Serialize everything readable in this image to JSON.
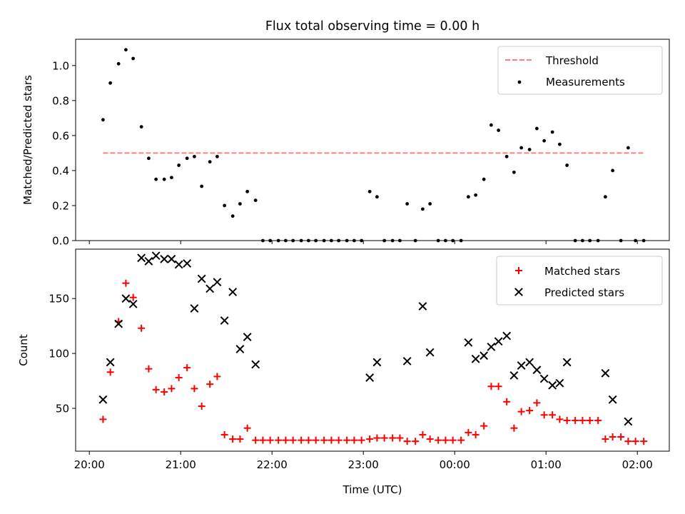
{
  "figure": {
    "title": "Flux total observing time = 0.00 h"
  },
  "chart_data": [
    {
      "type": "scatter",
      "ylabel": "Matched/Predicted stars",
      "ylim": [
        0,
        1.15
      ],
      "yticks": [
        0.0,
        0.2,
        0.4,
        0.6,
        0.8,
        1.0
      ],
      "ytick_labels": [
        "0.0",
        "0.2",
        "0.4",
        "0.6",
        "0.8",
        "1.0"
      ],
      "x_unit": "hours since 20:00 UTC",
      "xlim": [
        -0.15,
        6.35
      ],
      "xticks": [
        0,
        1,
        2,
        3,
        4,
        5,
        6
      ],
      "show_xtick_labels": false,
      "grid": false,
      "legend_position": "top-right",
      "threshold": {
        "name": "Threshold",
        "value": 0.5,
        "x_range": [
          0.15,
          6.08
        ],
        "color": "#ff7f7f",
        "style": "dashed"
      },
      "series": [
        {
          "name": "Measurements",
          "marker": "dot",
          "color": "#000000",
          "points": [
            [
              0.15,
              0.69
            ],
            [
              0.23,
              0.9
            ],
            [
              0.32,
              1.01
            ],
            [
              0.4,
              1.09
            ],
            [
              0.48,
              1.04
            ],
            [
              0.57,
              0.65
            ],
            [
              0.65,
              0.47
            ],
            [
              0.73,
              0.35
            ],
            [
              0.82,
              0.35
            ],
            [
              0.9,
              0.36
            ],
            [
              0.98,
              0.43
            ],
            [
              1.07,
              0.47
            ],
            [
              1.15,
              0.48
            ],
            [
              1.23,
              0.31
            ],
            [
              1.32,
              0.45
            ],
            [
              1.4,
              0.48
            ],
            [
              1.48,
              0.2
            ],
            [
              1.57,
              0.14
            ],
            [
              1.65,
              0.21
            ],
            [
              1.73,
              0.28
            ],
            [
              1.82,
              0.23
            ],
            [
              1.9,
              0.0
            ],
            [
              1.98,
              0.0
            ],
            [
              2.07,
              0.0
            ],
            [
              2.15,
              0.0
            ],
            [
              2.23,
              0.0
            ],
            [
              2.32,
              0.0
            ],
            [
              2.4,
              0.0
            ],
            [
              2.48,
              0.0
            ],
            [
              2.57,
              0.0
            ],
            [
              2.65,
              0.0
            ],
            [
              2.73,
              0.0
            ],
            [
              2.82,
              0.0
            ],
            [
              2.9,
              0.0
            ],
            [
              2.98,
              0.0
            ],
            [
              3.07,
              0.28
            ],
            [
              3.15,
              0.25
            ],
            [
              3.23,
              0.0
            ],
            [
              3.32,
              0.0
            ],
            [
              3.4,
              0.0
            ],
            [
              3.48,
              0.21
            ],
            [
              3.57,
              0.0
            ],
            [
              3.65,
              0.18
            ],
            [
              3.73,
              0.21
            ],
            [
              3.82,
              0.0
            ],
            [
              3.9,
              0.0
            ],
            [
              3.98,
              0.0
            ],
            [
              4.07,
              0.0
            ],
            [
              4.15,
              0.25
            ],
            [
              4.23,
              0.26
            ],
            [
              4.32,
              0.35
            ],
            [
              4.4,
              0.66
            ],
            [
              4.48,
              0.63
            ],
            [
              4.57,
              0.48
            ],
            [
              4.65,
              0.39
            ],
            [
              4.73,
              0.53
            ],
            [
              4.82,
              0.52
            ],
            [
              4.9,
              0.64
            ],
            [
              4.98,
              0.57
            ],
            [
              5.07,
              0.62
            ],
            [
              5.15,
              0.55
            ],
            [
              5.23,
              0.43
            ],
            [
              5.32,
              0.0
            ],
            [
              5.4,
              0.0
            ],
            [
              5.48,
              0.0
            ],
            [
              5.57,
              0.0
            ],
            [
              5.65,
              0.25
            ],
            [
              5.73,
              0.4
            ],
            [
              5.82,
              0.0
            ],
            [
              5.9,
              0.53
            ],
            [
              5.98,
              0.0
            ],
            [
              6.07,
              0.0
            ]
          ]
        }
      ]
    },
    {
      "type": "scatter",
      "ylabel": "Count",
      "xlabel": "Time (UTC)",
      "ylim": [
        11,
        195
      ],
      "yticks": [
        50,
        100,
        150
      ],
      "ytick_labels": [
        "50",
        "100",
        "150"
      ],
      "x_unit": "hours since 20:00 UTC",
      "xlim": [
        -0.15,
        6.35
      ],
      "xticks": [
        0,
        1,
        2,
        3,
        4,
        5,
        6
      ],
      "xtick_labels": [
        "20:00",
        "21:00",
        "22:00",
        "23:00",
        "00:00",
        "01:00",
        "02:00"
      ],
      "grid": false,
      "legend_position": "top-right",
      "series": [
        {
          "name": "Matched stars",
          "marker": "plus",
          "color": "#ff0000",
          "points": [
            [
              0.15,
              40
            ],
            [
              0.23,
              83
            ],
            [
              0.32,
              129
            ],
            [
              0.4,
              164
            ],
            [
              0.48,
              151
            ],
            [
              0.57,
              123
            ],
            [
              0.65,
              86
            ],
            [
              0.73,
              67
            ],
            [
              0.82,
              65
            ],
            [
              0.9,
              68
            ],
            [
              0.98,
              78
            ],
            [
              1.07,
              87
            ],
            [
              1.15,
              68
            ],
            [
              1.23,
              52
            ],
            [
              1.32,
              72
            ],
            [
              1.4,
              79
            ],
            [
              1.48,
              26
            ],
            [
              1.57,
              22
            ],
            [
              1.65,
              22
            ],
            [
              1.73,
              32
            ],
            [
              1.82,
              21
            ],
            [
              1.9,
              21
            ],
            [
              1.98,
              21
            ],
            [
              2.07,
              21
            ],
            [
              2.15,
              21
            ],
            [
              2.23,
              21
            ],
            [
              2.32,
              21
            ],
            [
              2.4,
              21
            ],
            [
              2.48,
              21
            ],
            [
              2.57,
              21
            ],
            [
              2.65,
              21
            ],
            [
              2.73,
              21
            ],
            [
              2.82,
              21
            ],
            [
              2.9,
              21
            ],
            [
              2.98,
              21
            ],
            [
              3.07,
              22
            ],
            [
              3.15,
              23
            ],
            [
              3.23,
              23
            ],
            [
              3.32,
              23
            ],
            [
              3.4,
              23
            ],
            [
              3.48,
              20
            ],
            [
              3.57,
              20
            ],
            [
              3.65,
              26
            ],
            [
              3.73,
              22
            ],
            [
              3.82,
              21
            ],
            [
              3.9,
              21
            ],
            [
              3.98,
              21
            ],
            [
              4.07,
              21
            ],
            [
              4.15,
              28
            ],
            [
              4.23,
              26
            ],
            [
              4.32,
              34
            ],
            [
              4.4,
              70
            ],
            [
              4.48,
              70
            ],
            [
              4.57,
              56
            ],
            [
              4.65,
              32
            ],
            [
              4.73,
              47
            ],
            [
              4.82,
              48
            ],
            [
              4.9,
              55
            ],
            [
              4.98,
              44
            ],
            [
              5.07,
              44
            ],
            [
              5.15,
              40
            ],
            [
              5.23,
              39
            ],
            [
              5.32,
              39
            ],
            [
              5.4,
              39
            ],
            [
              5.48,
              39
            ],
            [
              5.57,
              39
            ],
            [
              5.65,
              22
            ],
            [
              5.73,
              24
            ],
            [
              5.82,
              24
            ],
            [
              5.9,
              20
            ],
            [
              5.98,
              20
            ],
            [
              6.07,
              20
            ]
          ]
        },
        {
          "name": "Predicted stars",
          "marker": "x",
          "color": "#000000",
          "points": [
            [
              0.15,
              58
            ],
            [
              0.23,
              92
            ],
            [
              0.32,
              127
            ],
            [
              0.4,
              150
            ],
            [
              0.48,
              145
            ],
            [
              0.57,
              187
            ],
            [
              0.65,
              184
            ],
            [
              0.73,
              189
            ],
            [
              0.82,
              186
            ],
            [
              0.9,
              186
            ],
            [
              0.98,
              181
            ],
            [
              1.07,
              182
            ],
            [
              1.15,
              141
            ],
            [
              1.23,
              168
            ],
            [
              1.32,
              159
            ],
            [
              1.4,
              165
            ],
            [
              1.48,
              130
            ],
            [
              1.57,
              156
            ],
            [
              1.65,
              104
            ],
            [
              1.73,
              115
            ],
            [
              1.82,
              90
            ],
            [
              3.07,
              78
            ],
            [
              3.15,
              92
            ],
            [
              3.48,
              93
            ],
            [
              3.65,
              143
            ],
            [
              3.73,
              101
            ],
            [
              4.15,
              110
            ],
            [
              4.23,
              95
            ],
            [
              4.32,
              98
            ],
            [
              4.4,
              106
            ],
            [
              4.48,
              111
            ],
            [
              4.57,
              116
            ],
            [
              4.65,
              80
            ],
            [
              4.73,
              89
            ],
            [
              4.82,
              92
            ],
            [
              4.9,
              85
            ],
            [
              4.98,
              77
            ],
            [
              5.07,
              71
            ],
            [
              5.15,
              73
            ],
            [
              5.23,
              92
            ],
            [
              5.65,
              82
            ],
            [
              5.73,
              58
            ],
            [
              5.9,
              38
            ]
          ]
        }
      ]
    }
  ]
}
